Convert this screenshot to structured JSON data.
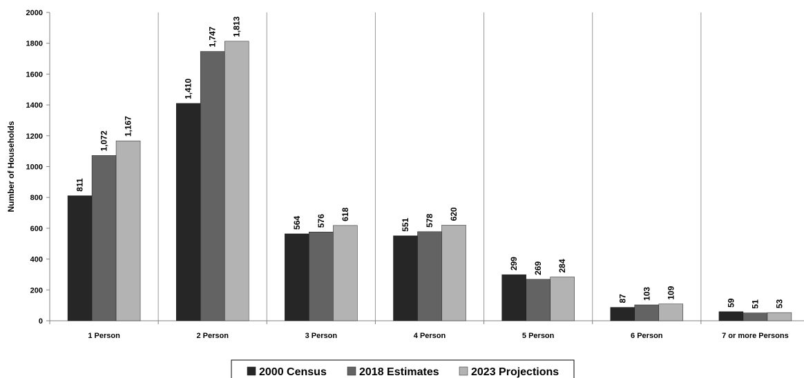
{
  "chart_data": {
    "type": "bar",
    "title": "",
    "xlabel": "",
    "ylabel": "Number of Households",
    "ylim": [
      0,
      2000
    ],
    "yticks": [
      0,
      200,
      400,
      600,
      800,
      1000,
      1200,
      1400,
      1600,
      1800,
      2000
    ],
    "categories": [
      "1 Person",
      "2 Person",
      "3 Person",
      "4 Person",
      "5 Person",
      "6 Person",
      "7 or more Persons"
    ],
    "series": [
      {
        "name": "2000 Census",
        "values": [
          811,
          1410,
          564,
          551,
          299,
          87,
          59
        ],
        "labels": [
          "811",
          "1,410",
          "564",
          "551",
          "299",
          "87",
          "59"
        ],
        "color": "#262626"
      },
      {
        "name": "2018 Estimates",
        "values": [
          1072,
          1747,
          576,
          578,
          269,
          103,
          51
        ],
        "labels": [
          "1,072",
          "1,747",
          "576",
          "578",
          "269",
          "103",
          "51"
        ],
        "color": "#636363"
      },
      {
        "name": "2023 Projections",
        "values": [
          1167,
          1813,
          618,
          620,
          284,
          109,
          53
        ],
        "labels": [
          "1,167",
          "1,813",
          "618",
          "620",
          "284",
          "109",
          "53"
        ],
        "color": "#b3b3b3"
      }
    ],
    "grid": true,
    "legend_position": "bottom"
  }
}
